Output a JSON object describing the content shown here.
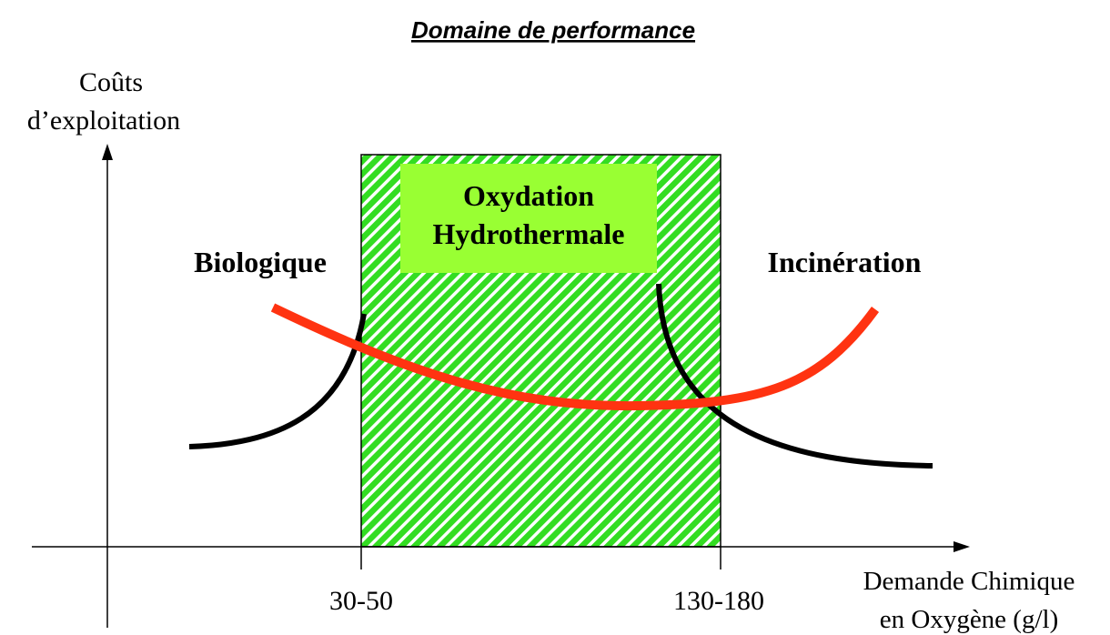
{
  "title": "Domaine de performance",
  "y_axis_label": [
    "Coûts",
    "d’exploitation"
  ],
  "x_axis_label": [
    "Demande Chimique",
    "en Oxygène (g/l)"
  ],
  "x_ticks": [
    "30-50",
    "130-180"
  ],
  "regions": {
    "left": "Biologique",
    "middle": [
      "Oxydation",
      "Hydrothermale"
    ],
    "right": "Incinération"
  }
}
